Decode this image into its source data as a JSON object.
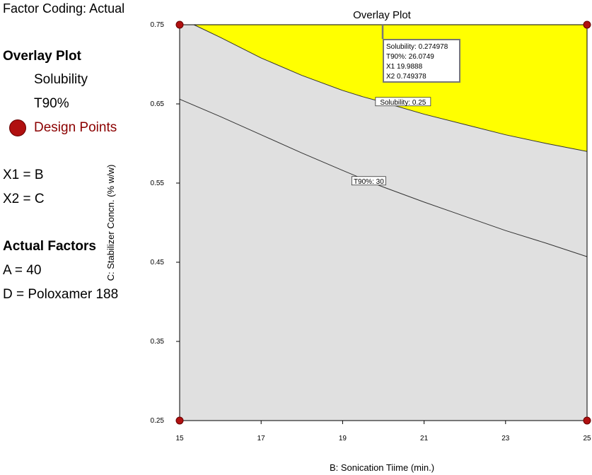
{
  "sidebar": {
    "factor_coding": "Factor Coding: Actual",
    "overlay_heading": "Overlay Plot",
    "legend": [
      "Solubility",
      "T90%",
      "Design Points"
    ],
    "x1": "X1 = B",
    "x2": "X2 = C",
    "actual_heading": "Actual Factors",
    "factor_a": "A = 40",
    "factor_d": "D = Poloxamer 188"
  },
  "colors": {
    "feasible_region": "#ffff00",
    "infeasible_region": "#e0e0e0",
    "design_point": "#b01010"
  },
  "chart_data": {
    "type": "overlay-contour",
    "title": "Overlay Plot",
    "xlabel": "B: Sonication Tiime (min.)",
    "ylabel": "C: Stabilizer Concn. (% w/w)",
    "xlim": [
      15,
      25
    ],
    "ylim": [
      0.25,
      0.75
    ],
    "x_ticks": [
      "15",
      "17",
      "19",
      "21",
      "23",
      "25"
    ],
    "y_ticks": [
      "0.25",
      "0.35",
      "0.45",
      "0.55",
      "0.65",
      "0.75"
    ],
    "contours": [
      {
        "name": "Solubility: 0.25",
        "label": "Solubility: 0.25",
        "points": [
          [
            15.35,
            0.75
          ],
          [
            16,
            0.734
          ],
          [
            17,
            0.708
          ],
          [
            18,
            0.686
          ],
          [
            19,
            0.667
          ],
          [
            19.5,
            0.659
          ],
          [
            20,
            0.652
          ],
          [
            21,
            0.637
          ],
          [
            22,
            0.624
          ],
          [
            23,
            0.611
          ],
          [
            24,
            0.6
          ],
          [
            25,
            0.59
          ]
        ]
      },
      {
        "name": "T90%: 30",
        "label": "T90%: 30",
        "points": [
          [
            15,
            0.656
          ],
          [
            16,
            0.634
          ],
          [
            17,
            0.611
          ],
          [
            18,
            0.588
          ],
          [
            19,
            0.566
          ],
          [
            19.65,
            0.552
          ],
          [
            20,
            0.545
          ],
          [
            21,
            0.526
          ],
          [
            22,
            0.508
          ],
          [
            23,
            0.49
          ],
          [
            24,
            0.474
          ],
          [
            25,
            0.457
          ]
        ]
      }
    ],
    "design_points": [
      [
        15,
        0.75
      ],
      [
        25,
        0.75
      ],
      [
        15,
        0.25
      ],
      [
        25,
        0.25
      ]
    ],
    "flag": {
      "at": [
        20,
        0.75
      ],
      "lines": [
        "Solubility:   0.274978",
        "T90%:   26.0749",
        "X1   19.9888",
        "X2   0.749378"
      ]
    }
  }
}
